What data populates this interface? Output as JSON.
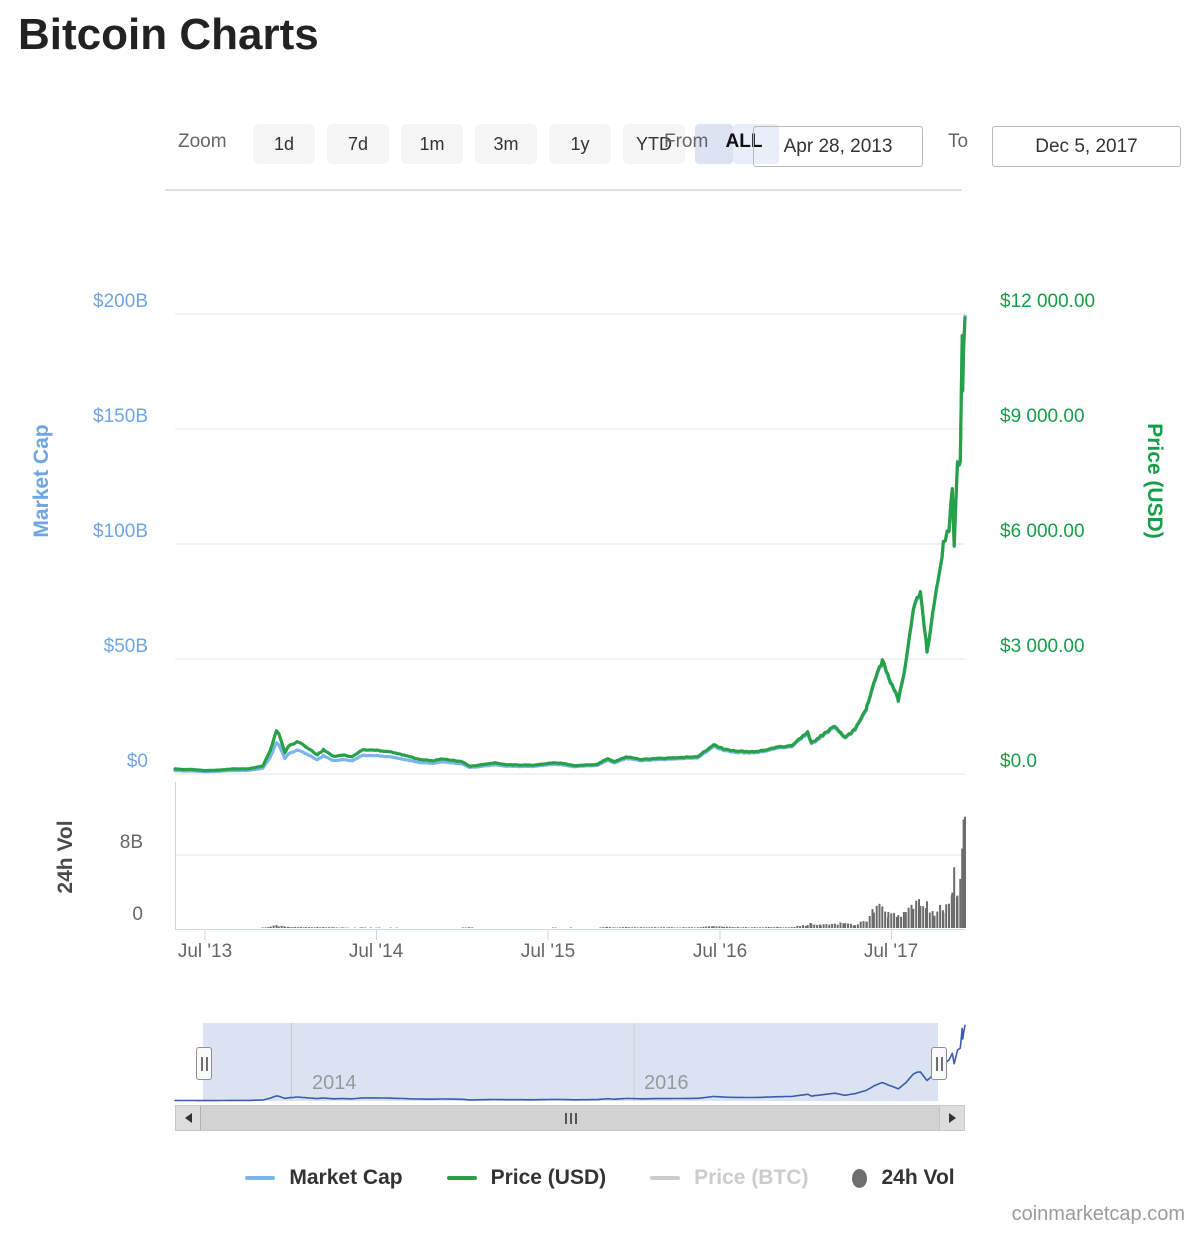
{
  "page": {
    "title": "Bitcoin Charts",
    "watermark": "coinmarketcap.com"
  },
  "controls": {
    "zoom_label": "Zoom",
    "buttons": [
      {
        "label": "1d",
        "selected": false
      },
      {
        "label": "7d",
        "selected": false
      },
      {
        "label": "1m",
        "selected": false
      },
      {
        "label": "3m",
        "selected": false
      },
      {
        "label": "1y",
        "selected": false
      },
      {
        "label": "YTD",
        "selected": false
      },
      {
        "label": "ALL",
        "selected": true
      }
    ],
    "from_label": "From",
    "from_value": "Apr 28, 2013",
    "to_label": "To",
    "to_value": "Dec 5, 2017"
  },
  "axes": {
    "market_cap": {
      "title": "Market Cap",
      "color": "#7cb5ec",
      "ticks": [
        "$200B",
        "$150B",
        "$100B",
        "$50B",
        "$0"
      ]
    },
    "price_usd": {
      "title": "Price (USD)",
      "color": "#26a148",
      "ticks": [
        "$12 000.00",
        "$9 000.00",
        "$6 000.00",
        "$3 000.00",
        "$0.0"
      ]
    },
    "volume": {
      "title": "24h Vol",
      "color": "#6b6b6b",
      "ticks": [
        "8B",
        "0"
      ]
    },
    "x": {
      "ticks": [
        "Jul '13",
        "Jul '14",
        "Jul '15",
        "Jul '16",
        "Jul '17"
      ]
    },
    "navigator_years": [
      "2014",
      "2016"
    ]
  },
  "legend": [
    {
      "label": "Market Cap",
      "type": "line",
      "color": "#7cb5ec",
      "enabled": true
    },
    {
      "label": "Price (USD)",
      "type": "line",
      "color": "#26a148",
      "enabled": true
    },
    {
      "label": "Price (BTC)",
      "type": "line",
      "color": "#cccccc",
      "enabled": false
    },
    {
      "label": "24h Vol",
      "type": "circle",
      "color": "#6e6e6e",
      "enabled": true
    }
  ],
  "chart_data": {
    "type": "line",
    "title": "Bitcoin Charts",
    "x_range": [
      "2013-04-28",
      "2017-12-05"
    ],
    "left_axis": {
      "label": "Market Cap",
      "unit": "USD billions",
      "range": [
        0,
        200
      ],
      "ticks": [
        0,
        50,
        100,
        150,
        200
      ]
    },
    "right_axis": {
      "label": "Price (USD)",
      "unit": "USD",
      "range": [
        0,
        12000
      ],
      "ticks": [
        0,
        3000,
        6000,
        9000,
        12000
      ]
    },
    "volume_axis": {
      "label": "24h Vol",
      "unit": "USD billions",
      "range": [
        0,
        16
      ],
      "ticks": [
        0,
        8
      ]
    },
    "series": [
      {
        "name": "Market Cap",
        "type": "line",
        "axis": "left",
        "color": "#7cb5ec",
        "column": 2
      },
      {
        "name": "Price (USD)",
        "type": "line",
        "axis": "right",
        "color": "#26a148",
        "column": 1
      },
      {
        "name": "Price (BTC)",
        "type": "line",
        "axis": "hidden",
        "color": "#cccccc",
        "column": null,
        "visible": false
      },
      {
        "name": "24h Vol",
        "type": "bar",
        "axis": "volume",
        "color": "#6b6b6b",
        "column": 3
      }
    ],
    "columns": [
      "date",
      "price_usd",
      "market_cap_busd",
      "vol_24h_busd"
    ],
    "points": [
      [
        "2013-04-28",
        135,
        1.5,
        0.0
      ],
      [
        "2013-05-15",
        115,
        1.3,
        0.0
      ],
      [
        "2013-06-01",
        122,
        1.36,
        0.0
      ],
      [
        "2013-07-01",
        88,
        1.0,
        0.0
      ],
      [
        "2013-08-01",
        104,
        1.2,
        0.0
      ],
      [
        "2013-09-01",
        135,
        1.55,
        0.0
      ],
      [
        "2013-10-01",
        132,
        1.57,
        0.0
      ],
      [
        "2013-11-01",
        210,
        2.5,
        0.05
      ],
      [
        "2013-11-18",
        650,
        7.8,
        0.2
      ],
      [
        "2013-11-30",
        1130,
        13.6,
        0.3
      ],
      [
        "2013-12-05",
        1040,
        12.5,
        0.25
      ],
      [
        "2013-12-18",
        560,
        6.8,
        0.15
      ],
      [
        "2013-12-28",
        750,
        9.1,
        0.1
      ],
      [
        "2014-01-15",
        850,
        10.5,
        0.1
      ],
      [
        "2014-02-01",
        700,
        8.7,
        0.1
      ],
      [
        "2014-02-25",
        500,
        6.2,
        0.1
      ],
      [
        "2014-03-10",
        630,
        7.9,
        0.08
      ],
      [
        "2014-04-01",
        460,
        5.8,
        0.06
      ],
      [
        "2014-04-20",
        500,
        6.3,
        0.05
      ],
      [
        "2014-05-10",
        445,
        5.7,
        0.04
      ],
      [
        "2014-06-01",
        630,
        8.1,
        0.05
      ],
      [
        "2014-07-01",
        620,
        8.0,
        0.04
      ],
      [
        "2014-08-01",
        580,
        7.5,
        0.04
      ],
      [
        "2014-09-01",
        480,
        6.2,
        0.03
      ],
      [
        "2014-10-01",
        380,
        5.0,
        0.04
      ],
      [
        "2014-11-01",
        340,
        4.6,
        0.03
      ],
      [
        "2014-11-15",
        400,
        5.4,
        0.04
      ],
      [
        "2014-12-01",
        375,
        5.1,
        0.03
      ],
      [
        "2015-01-01",
        315,
        4.3,
        0.05
      ],
      [
        "2015-01-15",
        200,
        2.8,
        0.07
      ],
      [
        "2015-02-01",
        225,
        3.1,
        0.04
      ],
      [
        "2015-03-10",
        290,
        4.0,
        0.04
      ],
      [
        "2015-04-01",
        245,
        3.4,
        0.03
      ],
      [
        "2015-05-01",
        235,
        3.3,
        0.03
      ],
      [
        "2015-06-01",
        230,
        3.3,
        0.03
      ],
      [
        "2015-07-12",
        290,
        4.2,
        0.04
      ],
      [
        "2015-08-01",
        280,
        4.0,
        0.03
      ],
      [
        "2015-08-25",
        220,
        3.2,
        0.05
      ],
      [
        "2015-09-15",
        230,
        3.4,
        0.03
      ],
      [
        "2015-10-15",
        255,
        3.8,
        0.04
      ],
      [
        "2015-11-04",
        400,
        5.9,
        0.1
      ],
      [
        "2015-11-20",
        320,
        4.8,
        0.06
      ],
      [
        "2015-12-15",
        450,
        6.8,
        0.09
      ],
      [
        "2016-01-15",
        380,
        5.8,
        0.07
      ],
      [
        "2016-02-15",
        405,
        6.2,
        0.07
      ],
      [
        "2016-03-15",
        415,
        6.4,
        0.07
      ],
      [
        "2016-04-15",
        430,
        6.7,
        0.07
      ],
      [
        "2016-05-15",
        455,
        7.1,
        0.08
      ],
      [
        "2016-06-18",
        760,
        11.9,
        0.2
      ],
      [
        "2016-07-10",
        650,
        10.2,
        0.12
      ],
      [
        "2016-08-02",
        600,
        9.4,
        0.1
      ],
      [
        "2016-09-01",
        575,
        9.1,
        0.08
      ],
      [
        "2016-10-01",
        610,
        9.7,
        0.08
      ],
      [
        "2016-11-01",
        700,
        11.2,
        0.1
      ],
      [
        "2016-12-01",
        745,
        12.0,
        0.1
      ],
      [
        "2017-01-04",
        1100,
        17.7,
        0.35
      ],
      [
        "2017-01-12",
        800,
        12.9,
        0.45
      ],
      [
        "2017-02-01",
        990,
        16.0,
        0.3
      ],
      [
        "2017-03-03",
        1250,
        20.3,
        0.5
      ],
      [
        "2017-03-25",
        940,
        15.3,
        0.5
      ],
      [
        "2017-04-15",
        1180,
        19.3,
        0.35
      ],
      [
        "2017-05-10",
        1750,
        28.7,
        0.9
      ],
      [
        "2017-05-25",
        2400,
        39.5,
        2.0
      ],
      [
        "2017-06-12",
        2950,
        48.5,
        2.2
      ],
      [
        "2017-06-25",
        2550,
        42.0,
        1.5
      ],
      [
        "2017-07-16",
        1930,
        31.8,
        1.2
      ],
      [
        "2017-08-01",
        2870,
        47.4,
        1.7
      ],
      [
        "2017-08-17",
        4330,
        71.6,
        2.4
      ],
      [
        "2017-09-01",
        4700,
        77.8,
        2.5
      ],
      [
        "2017-09-15",
        3230,
        53.5,
        2.8
      ],
      [
        "2017-10-01",
        4400,
        73.0,
        1.6
      ],
      [
        "2017-10-20",
        6000,
        99.8,
        2.2
      ],
      [
        "2017-11-01",
        6450,
        107.5,
        2.6
      ],
      [
        "2017-11-08",
        7450,
        124.0,
        3.6
      ],
      [
        "2017-11-12",
        5900,
        98.5,
        5.2
      ],
      [
        "2017-11-19",
        8050,
        134.5,
        4.0
      ],
      [
        "2017-11-25",
        8250,
        137.9,
        4.5
      ],
      [
        "2017-11-29",
        11350,
        189.0,
        10.0
      ],
      [
        "2017-11-30",
        9800,
        163.5,
        9.5
      ],
      [
        "2017-12-02",
        10900,
        182.0,
        10.5
      ],
      [
        "2017-12-05",
        11900,
        199.0,
        12.2
      ]
    ]
  }
}
